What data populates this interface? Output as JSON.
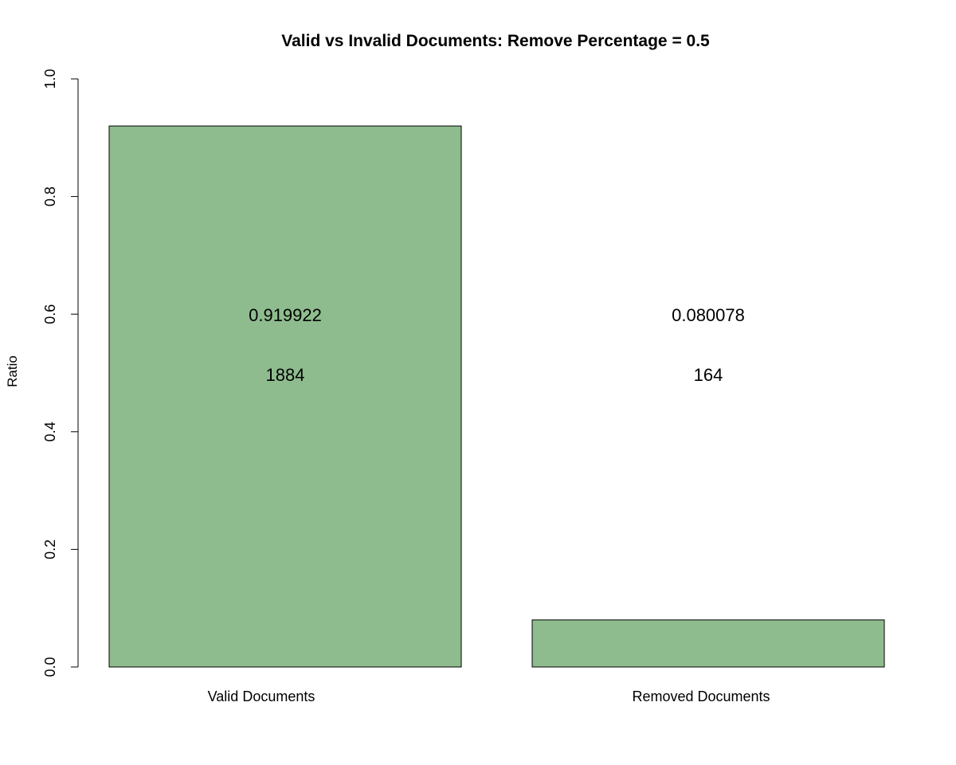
{
  "chart_data": {
    "type": "bar",
    "title": "Valid vs Invalid Documents: Remove Percentage =  0.5",
    "xlabel": "",
    "ylabel": "Ratio",
    "ylim": [
      0,
      1
    ],
    "yticks": [
      0.0,
      0.2,
      0.4,
      0.6,
      0.8,
      1.0
    ],
    "ytick_labels": [
      "0.0",
      "0.2",
      "0.4",
      "0.6",
      "0.8",
      "1.0"
    ],
    "categories": [
      "Valid Documents",
      "Removed Documents"
    ],
    "values": [
      0.919922,
      0.080078
    ],
    "ratio_labels": [
      "0.919922",
      "0.080078"
    ],
    "count_labels": [
      "1884",
      "164"
    ],
    "bar_color": "#8fbc8f",
    "grid": false,
    "legend": "none"
  }
}
